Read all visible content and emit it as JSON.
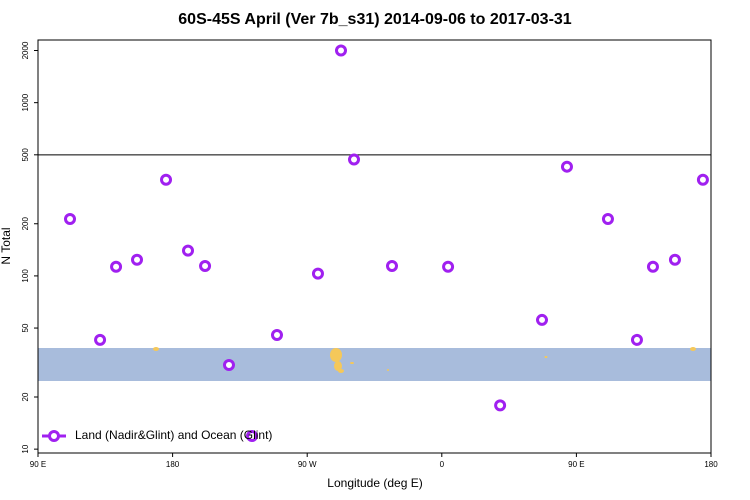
{
  "chart_data": {
    "type": "scatter",
    "title": "60S-45S April (Ver 7b_s31)   2014-09-06 to 2017-03-31",
    "x_label": "Longitude (deg E)",
    "y_label": "N Total",
    "xlim": [
      90,
      540
    ],
    "xticks": [
      {
        "value": 90,
        "label": "90 E"
      },
      {
        "value": 180,
        "label": "180"
      },
      {
        "value": 270,
        "label": "90 W"
      },
      {
        "value": 360,
        "label": "0"
      },
      {
        "value": 450,
        "label": "90 E"
      },
      {
        "value": 540,
        "label": "180"
      }
    ],
    "ylim": [
      9.5,
      2300
    ],
    "log_y": true,
    "yticks": [
      10,
      20,
      50,
      100,
      200,
      500,
      1000,
      2000
    ],
    "hline": 500,
    "legend": "bottom-left",
    "series": [
      {
        "name": "Land (Nadir&Glint) and Ocean (Glint)",
        "color": "#a020f0",
        "x": [
          111.4,
          131.5,
          142.2,
          156.2,
          175.6,
          190.3,
          201.7,
          217.7,
          233.1,
          249.8,
          277.2,
          292.6,
          301.3,
          326.7,
          364.2,
          399.0,
          427.0,
          443.7,
          471.1,
          490.5,
          501.2,
          515.9,
          534.6
        ],
        "values": [
          213,
          42.7,
          113,
          124,
          359,
          140,
          114,
          30.6,
          11.9,
          45.6,
          103,
          2000,
          470,
          114,
          113,
          17.9,
          55.7,
          427,
          213,
          42.7,
          113,
          124,
          359
        ]
      }
    ]
  }
}
